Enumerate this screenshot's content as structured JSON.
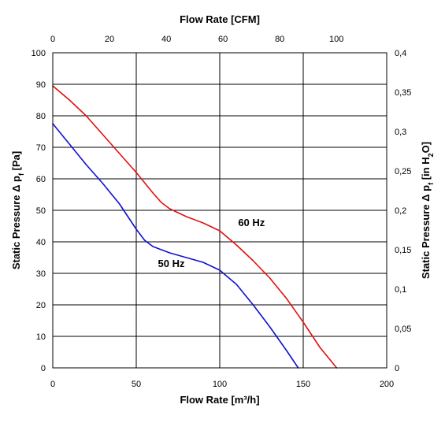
{
  "chart_data": {
    "type": "line",
    "title": "",
    "xlabel": "Flow Rate [m³/h]",
    "x2label": "Flow Rate [CFM]",
    "ylabel": "Static Pressure Δ p",
    "ylabel_sub": "f",
    "ylabel_unit": " [Pa]",
    "y2label_prefix": "Static Pressure Δ p",
    "y2label_sub": "f",
    "y2label_unit": " [in H",
    "y2label_h2o_sub": "2",
    "y2label_tail": "O]",
    "xlim": [
      0,
      200
    ],
    "ylim": [
      0,
      100
    ],
    "x2lim": [
      0,
      117.7
    ],
    "y2lim": [
      0,
      0.4
    ],
    "x_ticks": [
      "0",
      "50",
      "100",
      "150",
      "200"
    ],
    "y_ticks": [
      "0",
      "10",
      "20",
      "30",
      "40",
      "50",
      "60",
      "70",
      "80",
      "90",
      "100"
    ],
    "x2_ticks": [
      "0",
      "20",
      "40",
      "60",
      "80",
      "100"
    ],
    "y2_ticks": [
      "0",
      "0,05",
      "0,1",
      "0,15",
      "0,2",
      "0,25",
      "0,3",
      "0,35",
      "0,4"
    ],
    "grid": true,
    "series": [
      {
        "name": "50 Hz",
        "color": "#1010d0",
        "x": [
          0,
          10,
          20,
          30,
          40,
          45,
          50,
          55,
          60,
          65,
          70,
          80,
          90,
          100,
          110,
          120,
          130,
          140,
          147
        ],
        "y": [
          77.5,
          71,
          64.5,
          58.5,
          52,
          48,
          44,
          40.5,
          38.5,
          37.5,
          36.5,
          35,
          33.5,
          31,
          26.5,
          20,
          13,
          5.5,
          0
        ]
      },
      {
        "name": "60 Hz",
        "color": "#e01010",
        "x": [
          0,
          10,
          20,
          30,
          40,
          50,
          60,
          65,
          70,
          80,
          90,
          100,
          110,
          120,
          130,
          140,
          150,
          160,
          170
        ],
        "y": [
          89.5,
          85,
          80,
          74,
          68,
          62,
          55.5,
          52.5,
          50.5,
          48,
          46,
          43.5,
          39,
          34,
          28.5,
          22,
          14.5,
          6.5,
          0
        ]
      }
    ],
    "annotations": [
      "60 Hz",
      "50 Hz"
    ]
  }
}
